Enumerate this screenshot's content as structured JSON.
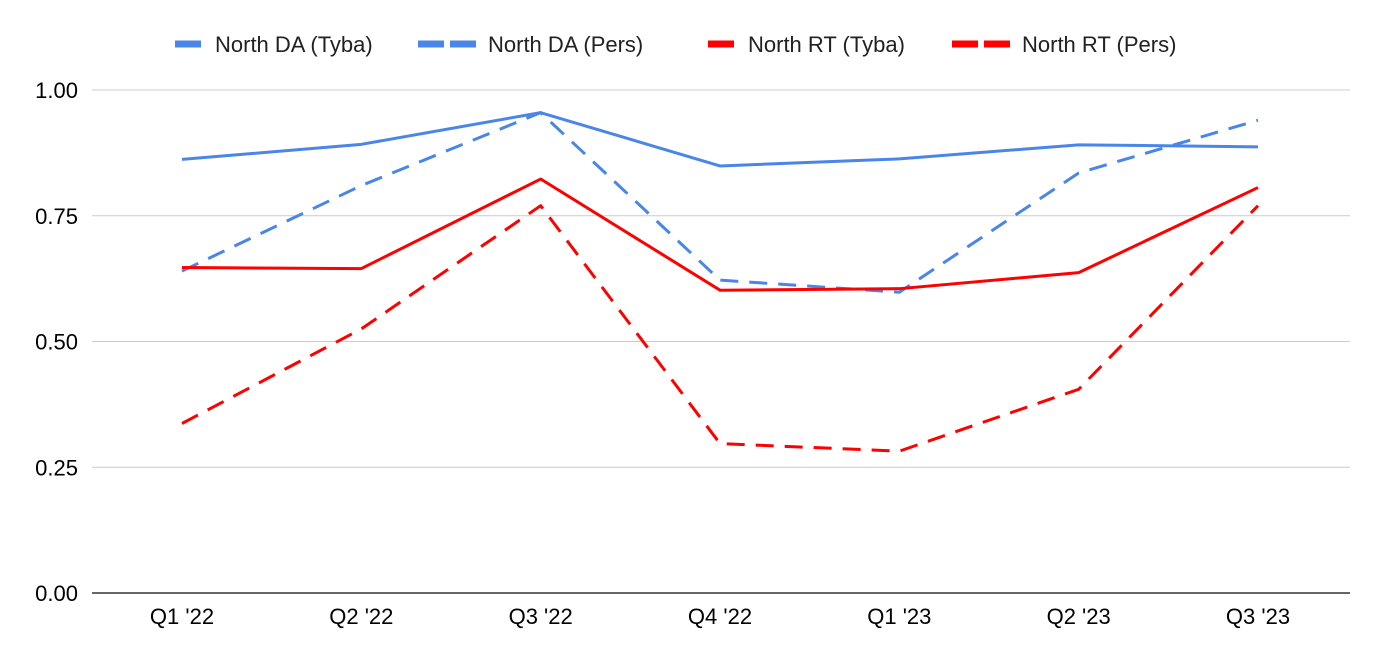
{
  "chart_data": {
    "type": "line",
    "categories": [
      "Q1 '22",
      "Q2 '22",
      "Q3 '22",
      "Q4 '22",
      "Q1 '23",
      "Q2 '23",
      "Q3 '23"
    ],
    "ylim": [
      0,
      1
    ],
    "yticks": [
      "0.00",
      "0.25",
      "0.50",
      "0.75",
      "1.00"
    ],
    "ytick_values": [
      0,
      0.25,
      0.5,
      0.75,
      1.0
    ],
    "grid": true,
    "legend_position": "top",
    "series": [
      {
        "name": "North DA (Tyba)",
        "color": "#4a86e8",
        "dashed": false,
        "values": [
          0.862,
          0.892,
          0.955,
          0.849,
          0.863,
          0.891,
          0.887
        ]
      },
      {
        "name": "North DA (Pers)",
        "color": "#4a86e8",
        "dashed": true,
        "values": [
          0.64,
          0.81,
          0.955,
          0.622,
          0.598,
          0.835,
          0.94
        ]
      },
      {
        "name": "North RT (Tyba)",
        "color": "#ff0000",
        "dashed": false,
        "values": [
          0.647,
          0.645,
          0.823,
          0.602,
          0.605,
          0.637,
          0.806
        ]
      },
      {
        "name": "North RT (Pers)",
        "color": "#ff0000",
        "dashed": true,
        "values": [
          0.337,
          0.525,
          0.77,
          0.297,
          0.282,
          0.405,
          0.77
        ]
      }
    ]
  }
}
